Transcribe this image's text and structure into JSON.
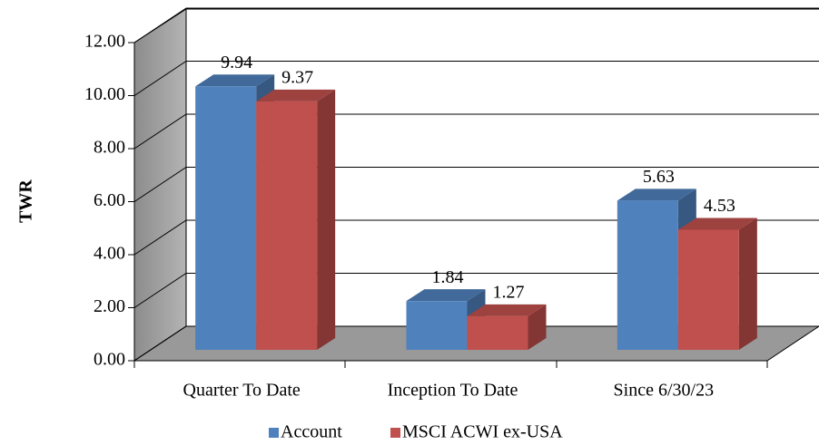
{
  "chart_data": {
    "type": "bar3d",
    "ylabel": "TWR",
    "categories": [
      "Quarter To Date",
      "Inception To Date",
      "Since 6/30/23"
    ],
    "series": [
      {
        "name": "Account",
        "color": "#4f81bd",
        "values": [
          9.94,
          1.84,
          5.63
        ]
      },
      {
        "name": "MSCI ACWI ex-USA",
        "color": "#c0504d",
        "values": [
          9.37,
          1.27,
          4.53
        ]
      }
    ],
    "ylim": [
      0,
      12
    ],
    "yticks": [
      {
        "value": 0,
        "label": "0.00"
      },
      {
        "value": 2,
        "label": "2.00"
      },
      {
        "value": 4,
        "label": "4.00"
      },
      {
        "value": 6,
        "label": "6.00"
      },
      {
        "value": 8,
        "label": "8.00"
      },
      {
        "value": 10,
        "label": "10.00"
      },
      {
        "value": 12,
        "label": "12.00"
      }
    ],
    "grid": true,
    "legend": "bottom"
  }
}
